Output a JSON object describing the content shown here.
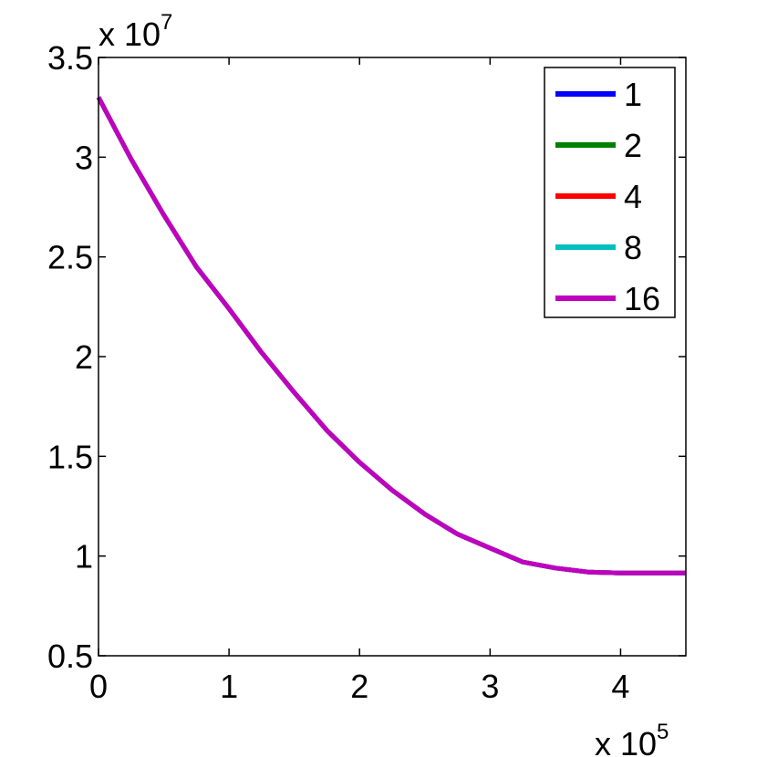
{
  "chart_data": {
    "type": "line",
    "title": "",
    "xlabel": "",
    "ylabel": "",
    "xlim": [
      0,
      4.5
    ],
    "ylim": [
      0.5,
      3.5
    ],
    "x_ticks": [
      "0",
      "1",
      "2",
      "3",
      "4"
    ],
    "y_ticks": [
      "0.5",
      "1",
      "1.5",
      "2",
      "2.5",
      "3",
      "3.5"
    ],
    "x_multiplier": {
      "base": "x 10",
      "exp": "5"
    },
    "y_multiplier": {
      "base": "x 10",
      "exp": "7"
    },
    "grid": false,
    "legend_position": "top-right",
    "x": [
      0,
      0.25,
      0.5,
      0.75,
      1.0,
      1.25,
      1.5,
      1.75,
      2.0,
      2.25,
      2.5,
      2.75,
      3.0,
      3.25,
      3.5,
      3.75,
      4.0,
      4.25,
      4.5
    ],
    "series": [
      {
        "name": "1",
        "color": "#0000ff",
        "values": [
          3.3,
          2.99,
          2.71,
          2.45,
          2.24,
          2.02,
          1.82,
          1.63,
          1.47,
          1.33,
          1.21,
          1.11,
          1.04,
          0.97,
          0.94,
          0.92,
          0.915,
          0.915,
          0.915
        ]
      },
      {
        "name": "2",
        "color": "#008000",
        "values": [
          3.3,
          2.99,
          2.71,
          2.45,
          2.24,
          2.02,
          1.82,
          1.63,
          1.47,
          1.33,
          1.21,
          1.11,
          1.04,
          0.97,
          0.94,
          0.92,
          0.915,
          0.915,
          0.915
        ]
      },
      {
        "name": "4",
        "color": "#ff0000",
        "values": [
          3.3,
          2.99,
          2.71,
          2.45,
          2.24,
          2.02,
          1.82,
          1.63,
          1.47,
          1.33,
          1.21,
          1.11,
          1.04,
          0.97,
          0.94,
          0.92,
          0.915,
          0.915,
          0.915
        ]
      },
      {
        "name": "8",
        "color": "#00bfbf",
        "values": [
          3.3,
          2.99,
          2.71,
          2.45,
          2.24,
          2.02,
          1.82,
          1.63,
          1.47,
          1.33,
          1.21,
          1.11,
          1.04,
          0.97,
          0.94,
          0.92,
          0.915,
          0.915,
          0.915
        ]
      },
      {
        "name": "16",
        "color": "#bf00bf",
        "values": [
          3.3,
          2.99,
          2.71,
          2.45,
          2.24,
          2.02,
          1.82,
          1.63,
          1.47,
          1.33,
          1.21,
          1.11,
          1.04,
          0.97,
          0.94,
          0.92,
          0.915,
          0.915,
          0.915
        ]
      }
    ]
  }
}
